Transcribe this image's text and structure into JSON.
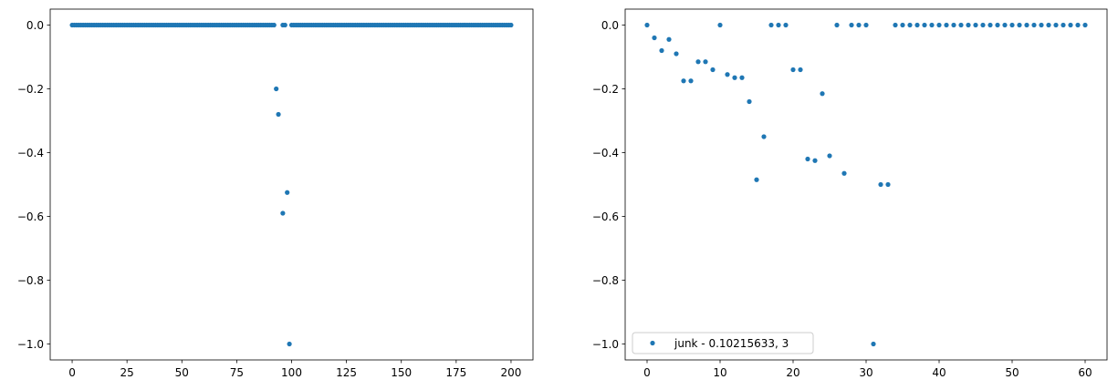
{
  "chart_data": [
    {
      "type": "scatter",
      "title": "",
      "xlabel": "",
      "ylabel": "",
      "xlim": [
        -10,
        210
      ],
      "ylim": [
        -1.05,
        0.05
      ],
      "xticks": [
        0,
        25,
        50,
        75,
        100,
        125,
        150,
        175,
        200
      ],
      "xtick_labels": [
        "0",
        "25",
        "50",
        "75",
        "100",
        "125",
        "150",
        "175",
        "200"
      ],
      "yticks": [
        0.0,
        -0.2,
        -0.4,
        -0.6,
        -0.8,
        -1.0
      ],
      "ytick_labels": [
        "0.0",
        "−0.2",
        "−0.4",
        "−0.6",
        "−0.8",
        "−1.0"
      ],
      "grid": false,
      "color": "#1f77b4",
      "zero_ranges": [
        [
          0,
          92
        ],
        [
          96,
          97
        ],
        [
          100,
          200
        ]
      ],
      "series": [
        {
          "name": "",
          "points": [
            [
              93,
              -0.2
            ],
            [
              94,
              -0.28
            ],
            [
              96,
              -0.59
            ],
            [
              98,
              -0.525
            ],
            [
              99,
              -1.0
            ]
          ]
        }
      ]
    },
    {
      "type": "scatter",
      "title": "",
      "xlabel": "",
      "ylabel": "",
      "xlim": [
        -3,
        63
      ],
      "ylim": [
        -1.05,
        0.05
      ],
      "xticks": [
        0,
        10,
        20,
        30,
        40,
        50,
        60
      ],
      "xtick_labels": [
        "0",
        "10",
        "20",
        "30",
        "40",
        "50",
        "60"
      ],
      "yticks": [
        0.0,
        -0.2,
        -0.4,
        -0.6,
        -0.8,
        -1.0
      ],
      "ytick_labels": [
        "0.0",
        "−0.2",
        "−0.4",
        "−0.6",
        "−0.8",
        "−1.0"
      ],
      "grid": false,
      "color": "#1f77b4",
      "legend": {
        "position": "lower-left",
        "entries": [
          "junk - 0.10215633, 3"
        ]
      },
      "series": [
        {
          "name": "junk - 0.10215633, 3",
          "points": [
            [
              0,
              0.0
            ],
            [
              1,
              -0.04
            ],
            [
              2,
              -0.08
            ],
            [
              3,
              -0.045
            ],
            [
              4,
              -0.09
            ],
            [
              5,
              -0.175
            ],
            [
              6,
              -0.175
            ],
            [
              7,
              -0.115
            ],
            [
              8,
              -0.115
            ],
            [
              9,
              -0.14
            ],
            [
              10,
              0.0
            ],
            [
              11,
              -0.155
            ],
            [
              12,
              -0.165
            ],
            [
              13,
              -0.165
            ],
            [
              14,
              -0.24
            ],
            [
              15,
              -0.485
            ],
            [
              16,
              -0.35
            ],
            [
              17,
              0.0
            ],
            [
              18,
              0.0
            ],
            [
              19,
              0.0
            ],
            [
              20,
              -0.14
            ],
            [
              21,
              -0.14
            ],
            [
              22,
              -0.42
            ],
            [
              23,
              -0.425
            ],
            [
              24,
              -0.215
            ],
            [
              25,
              -0.41
            ],
            [
              26,
              0.0
            ],
            [
              27,
              -0.465
            ],
            [
              28,
              0.0
            ],
            [
              29,
              0.0
            ],
            [
              30,
              0.0
            ],
            [
              31,
              -1.0
            ],
            [
              32,
              -0.5
            ],
            [
              33,
              -0.5
            ],
            [
              34,
              0.0
            ],
            [
              35,
              0.0
            ],
            [
              36,
              0.0
            ],
            [
              37,
              0.0
            ],
            [
              38,
              0.0
            ],
            [
              39,
              0.0
            ],
            [
              40,
              0.0
            ],
            [
              41,
              0.0
            ],
            [
              42,
              0.0
            ],
            [
              43,
              0.0
            ],
            [
              44,
              0.0
            ],
            [
              45,
              0.0
            ],
            [
              46,
              0.0
            ],
            [
              47,
              0.0
            ],
            [
              48,
              0.0
            ],
            [
              49,
              0.0
            ],
            [
              50,
              0.0
            ],
            [
              51,
              0.0
            ],
            [
              52,
              0.0
            ],
            [
              53,
              0.0
            ],
            [
              54,
              0.0
            ],
            [
              55,
              0.0
            ],
            [
              56,
              0.0
            ],
            [
              57,
              0.0
            ],
            [
              58,
              0.0
            ],
            [
              59,
              0.0
            ],
            [
              60,
              0.0
            ]
          ]
        }
      ]
    }
  ]
}
